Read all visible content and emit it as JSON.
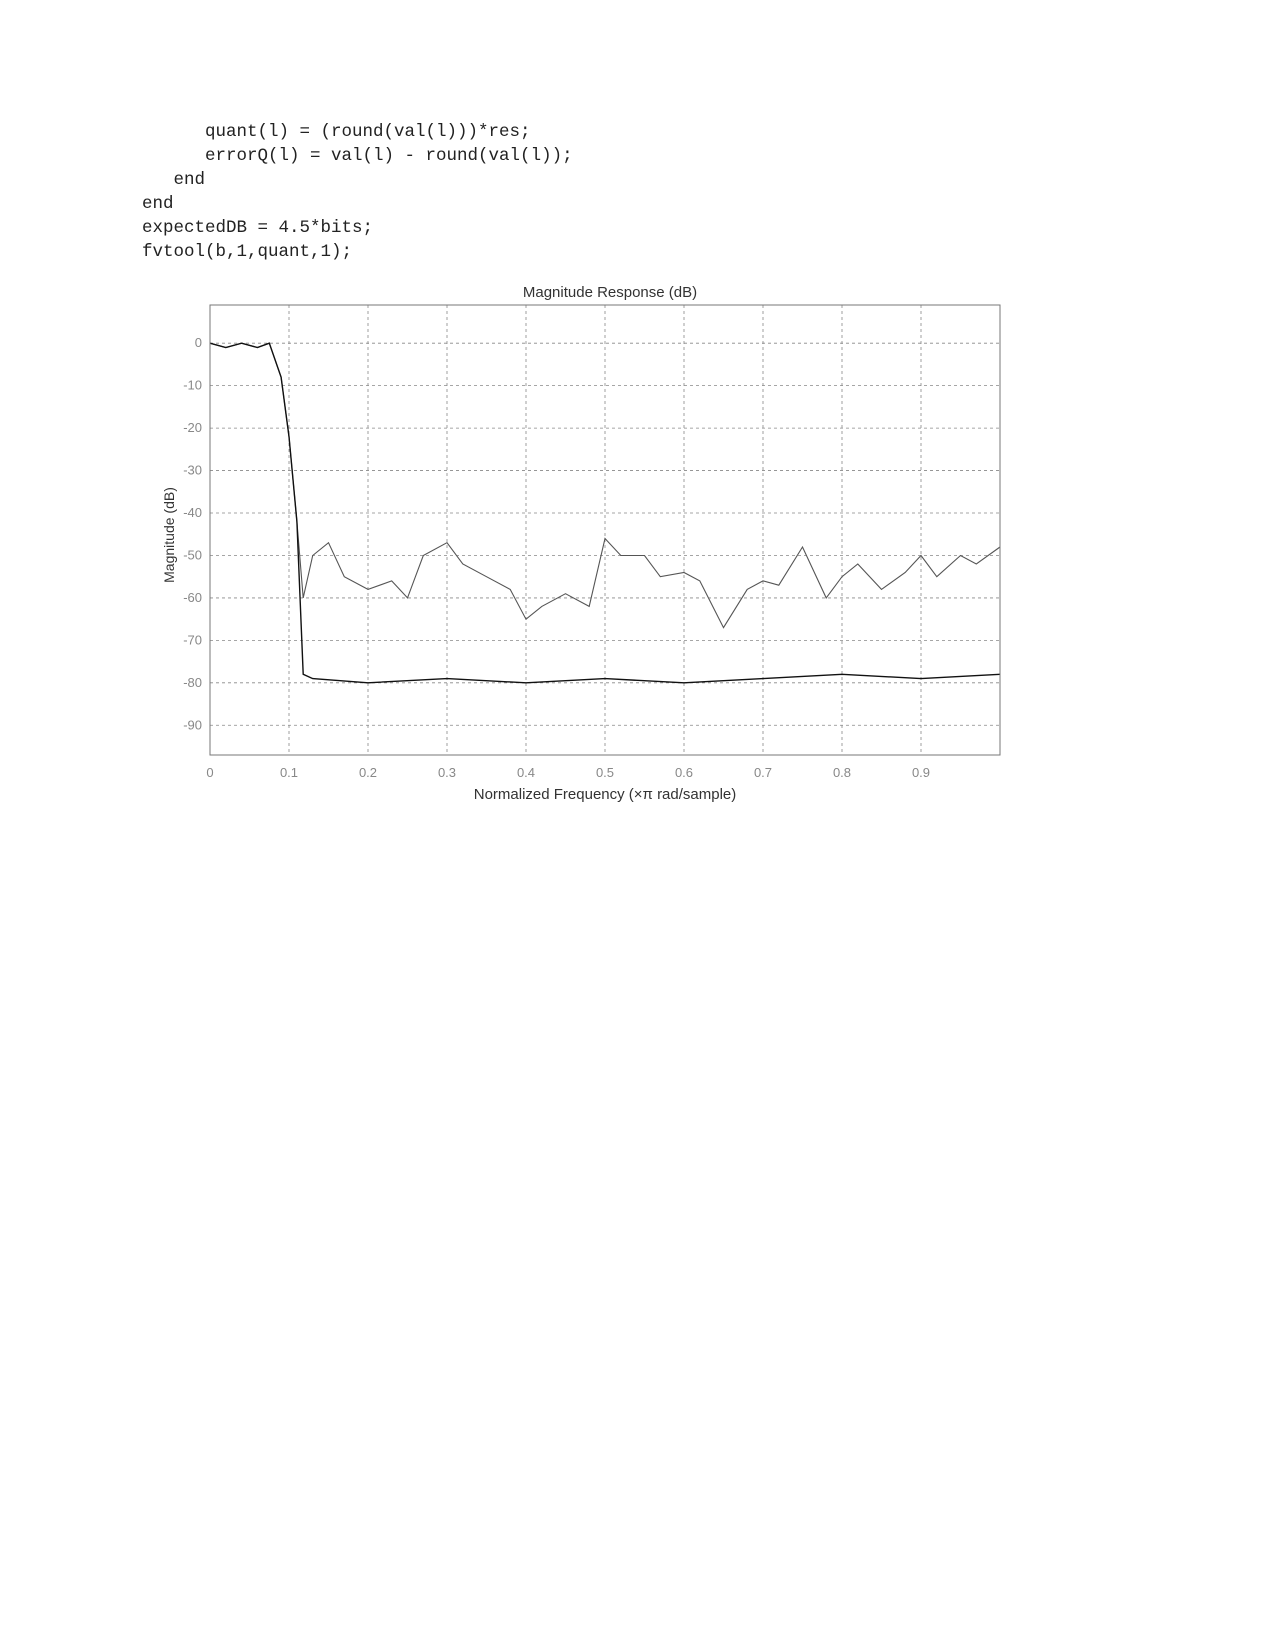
{
  "code": {
    "lines": [
      "      quant(l) = (round(val(l)))*res;",
      "      errorQ(l) = val(l) - round(val(l));",
      "   end",
      "end",
      "expectedDB = 4.5*bits;",
      "fvtool(b,1,quant,1);"
    ]
  },
  "chart_data": {
    "type": "line",
    "title": "Magnitude Response (dB)",
    "xlabel": "Normalized Frequency (×π rad/sample)",
    "ylabel": "Magnitude (dB)",
    "xlim": [
      0,
      1
    ],
    "ylim": [
      -97,
      9
    ],
    "xticks": [
      0,
      0.1,
      0.2,
      0.3,
      0.4,
      0.5,
      0.6,
      0.7,
      0.8,
      0.9
    ],
    "xtick_labels": [
      "0",
      "0.1",
      "0.2",
      "0.3",
      "0.4",
      "0.5",
      "0.6",
      "0.7",
      "0.8",
      "0.9"
    ],
    "yticks": [
      0,
      -10,
      -20,
      -30,
      -40,
      -50,
      -60,
      -70,
      -80,
      -90
    ],
    "ytick_labels": [
      "0",
      "-10",
      "-20",
      "-30",
      "-40",
      "-50",
      "-60",
      "-70",
      "-80",
      "-90"
    ],
    "grid": true,
    "series": [
      {
        "color": "#555555",
        "x": [
          0,
          0.02,
          0.04,
          0.06,
          0.075,
          0.09,
          0.1,
          0.11,
          0.118,
          0.13,
          0.15,
          0.17,
          0.2,
          0.23,
          0.25,
          0.27,
          0.3,
          0.32,
          0.35,
          0.38,
          0.4,
          0.42,
          0.45,
          0.48,
          0.5,
          0.52,
          0.55,
          0.57,
          0.6,
          0.62,
          0.65,
          0.68,
          0.7,
          0.72,
          0.75,
          0.78,
          0.8,
          0.82,
          0.85,
          0.88,
          0.9,
          0.92,
          0.95,
          0.97,
          1.0
        ],
        "y": [
          0,
          -1,
          0,
          -1,
          0,
          -8,
          -22,
          -42,
          -60,
          -50,
          -47,
          -55,
          -58,
          -56,
          -60,
          -50,
          -47,
          -52,
          -55,
          -58,
          -65,
          -62,
          -59,
          -62,
          -46,
          -50,
          -50,
          -55,
          -54,
          -56,
          -67,
          -58,
          -56,
          -57,
          -48,
          -60,
          -55,
          -52,
          -58,
          -54,
          -50,
          -55,
          -50,
          -52,
          -48
        ]
      },
      {
        "color": "#111111",
        "x": [
          0,
          0.02,
          0.04,
          0.06,
          0.075,
          0.09,
          0.1,
          0.11,
          0.118,
          0.13,
          0.2,
          0.3,
          0.4,
          0.5,
          0.6,
          0.7,
          0.8,
          0.9,
          1.0
        ],
        "y": [
          0,
          -1,
          0,
          -1,
          0,
          -8,
          -22,
          -42,
          -78,
          -79,
          -80,
          -79,
          -80,
          -79,
          -80,
          -79,
          -78,
          -79,
          -78
        ]
      }
    ]
  }
}
